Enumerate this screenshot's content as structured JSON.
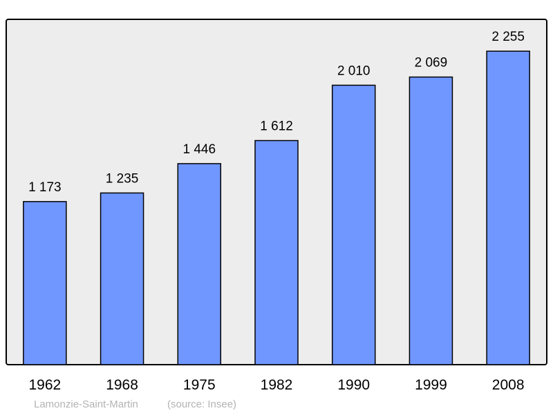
{
  "chart_data": {
    "type": "bar",
    "categories": [
      "1962",
      "1968",
      "1975",
      "1982",
      "1990",
      "1999",
      "2008"
    ],
    "values": [
      1173,
      1235,
      1446,
      1612,
      2010,
      2069,
      2255
    ],
    "value_labels": [
      "1 173",
      "1 235",
      "1 446",
      "1 612",
      "2 010",
      "2 069",
      "2 255"
    ],
    "title": "",
    "xlabel": "",
    "ylabel": "",
    "ylim": [
      0,
      2484
    ],
    "grid": false,
    "colors": {
      "bar": "#7097ff",
      "plot_bg": "#ededed",
      "frame": "#000000"
    }
  },
  "footer": {
    "place": "Lamonzie-Saint-Martin",
    "source": "(source: Insee)"
  }
}
